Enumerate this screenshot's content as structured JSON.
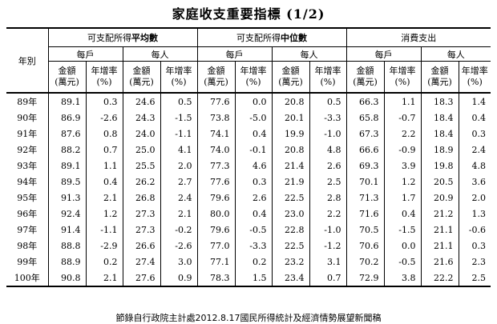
{
  "title": "家庭收支重要指標 (1/2)",
  "row_header": "年別",
  "groups": [
    {
      "pre": "可支配所得",
      "bold": "平均數"
    },
    {
      "pre": "可支配所得",
      "bold": "中位數"
    },
    {
      "pre": "消費支出",
      "bold": ""
    }
  ],
  "sub_household": "每戶",
  "sub_person": "每人",
  "col_amount_1": "金額",
  "col_amount_2": "(萬元)",
  "col_rate_1": "年增率",
  "col_rate_2": "(%)",
  "rows": [
    {
      "year": "89年",
      "v": [
        "89.1",
        "0.3",
        "24.6",
        "0.5",
        "77.6",
        "0.0",
        "20.8",
        "0.5",
        "66.3",
        "1.1",
        "18.3",
        "1.4"
      ]
    },
    {
      "year": "90年",
      "v": [
        "86.9",
        "-2.6",
        "24.3",
        "-1.5",
        "73.8",
        "-5.0",
        "20.1",
        "-3.3",
        "65.8",
        "-0.7",
        "18.4",
        "0.4"
      ]
    },
    {
      "year": "91年",
      "v": [
        "87.6",
        "0.8",
        "24.0",
        "-1.1",
        "74.1",
        "0.4",
        "19.9",
        "-1.0",
        "67.3",
        "2.2",
        "18.4",
        "0.3"
      ]
    },
    {
      "year": "92年",
      "v": [
        "88.2",
        "0.7",
        "25.0",
        "4.1",
        "74.0",
        "-0.1",
        "20.8",
        "4.8",
        "66.6",
        "-0.9",
        "18.9",
        "2.4"
      ]
    },
    {
      "year": "93年",
      "v": [
        "89.1",
        "1.1",
        "25.5",
        "2.0",
        "77.3",
        "4.6",
        "21.4",
        "2.6",
        "69.3",
        "3.9",
        "19.8",
        "4.8"
      ]
    },
    {
      "year": "94年",
      "v": [
        "89.5",
        "0.4",
        "26.2",
        "2.7",
        "77.6",
        "0.3",
        "21.9",
        "2.5",
        "70.1",
        "1.2",
        "20.5",
        "3.6"
      ]
    },
    {
      "year": "95年",
      "v": [
        "91.3",
        "2.1",
        "26.8",
        "2.4",
        "79.6",
        "2.6",
        "22.5",
        "2.8",
        "71.3",
        "1.7",
        "20.9",
        "2.0"
      ]
    },
    {
      "year": "96年",
      "v": [
        "92.4",
        "1.2",
        "27.3",
        "2.1",
        "80.0",
        "0.4",
        "23.0",
        "2.2",
        "71.6",
        "0.4",
        "21.2",
        "1.3"
      ]
    },
    {
      "year": "97年",
      "v": [
        "91.4",
        "-1.1",
        "27.3",
        "-0.2",
        "79.6",
        "-0.5",
        "22.8",
        "-1.0",
        "70.5",
        "-1.5",
        "21.1",
        "-0.6"
      ]
    },
    {
      "year": "98年",
      "v": [
        "88.8",
        "-2.9",
        "26.6",
        "-2.6",
        "77.0",
        "-3.3",
        "22.5",
        "-1.2",
        "70.6",
        "0.0",
        "21.1",
        "0.3"
      ]
    },
    {
      "year": "99年",
      "v": [
        "88.9",
        "0.2",
        "27.4",
        "3.0",
        "77.1",
        "0.2",
        "23.2",
        "3.1",
        "70.2",
        "-0.5",
        "21.6",
        "2.3"
      ]
    },
    {
      "year": "100年",
      "v": [
        "90.8",
        "2.1",
        "27.6",
        "0.9",
        "78.3",
        "1.5",
        "23.4",
        "0.7",
        "72.9",
        "3.8",
        "22.2",
        "2.5"
      ]
    }
  ],
  "source": "節錄自行政院主計處2012.8.17國民所得統計及經濟情勢展望新聞稿"
}
